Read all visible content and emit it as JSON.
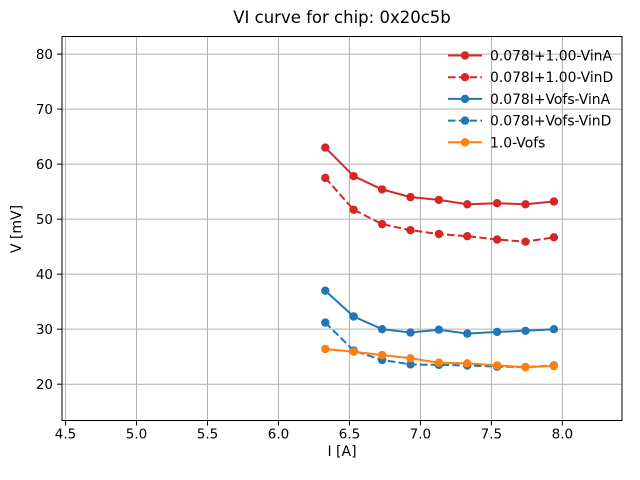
{
  "chart_data": {
    "type": "line",
    "title": "VI curve for chip: 0x20c5b",
    "xlabel": "I [A]",
    "ylabel": "V [mV]",
    "xlim": [
      4.475,
      8.42
    ],
    "ylim": [
      13.4,
      83.2
    ],
    "xticks": [
      4.5,
      5.0,
      5.5,
      6.0,
      6.5,
      7.0,
      7.5,
      8.0
    ],
    "xtick_labels": [
      "4.5",
      "5.0",
      "5.5",
      "6.0",
      "6.5",
      "7.0",
      "7.5",
      "8.0"
    ],
    "yticks": [
      20,
      30,
      40,
      50,
      60,
      70,
      80
    ],
    "ytick_labels": [
      "20",
      "30",
      "40",
      "50",
      "60",
      "70",
      "80"
    ],
    "grid": true,
    "grid_color": "#b0b0b0",
    "axis_color": "#000000",
    "text_color": "#000000",
    "background_color": "#ffffff",
    "legend_position": "upper-right",
    "legend_frame": false,
    "x": [
      6.33,
      6.53,
      6.73,
      6.93,
      7.13,
      7.33,
      7.54,
      7.74,
      7.94
    ],
    "series": [
      {
        "name": "0.078I+1.00-VinA",
        "color": "#d62728",
        "style": "solid",
        "marker": "circle",
        "values": [
          63.0,
          57.8,
          55.4,
          54.0,
          53.5,
          52.7,
          52.9,
          52.7,
          53.2
        ]
      },
      {
        "name": "0.078I+1.00-VinD",
        "color": "#d62728",
        "style": "dashed",
        "marker": "circle",
        "values": [
          57.5,
          51.7,
          49.1,
          48.0,
          47.3,
          46.9,
          46.3,
          45.9,
          46.7
        ]
      },
      {
        "name": "0.078I+Vofs-VinA",
        "color": "#1f77b4",
        "style": "solid",
        "marker": "circle",
        "values": [
          37.0,
          32.3,
          30.0,
          29.4,
          29.9,
          29.2,
          29.5,
          29.7,
          30.0
        ]
      },
      {
        "name": "0.078I+Vofs-VinD",
        "color": "#1f77b4",
        "style": "dashed",
        "marker": "circle",
        "values": [
          31.2,
          26.1,
          24.4,
          23.6,
          23.5,
          23.4,
          23.2,
          23.1,
          23.4
        ]
      },
      {
        "name": "1.0-Vofs",
        "color": "#ff7f0e",
        "style": "solid",
        "marker": "circle",
        "values": [
          26.4,
          25.9,
          25.3,
          24.7,
          23.9,
          23.8,
          23.4,
          23.1,
          23.3
        ]
      }
    ]
  }
}
